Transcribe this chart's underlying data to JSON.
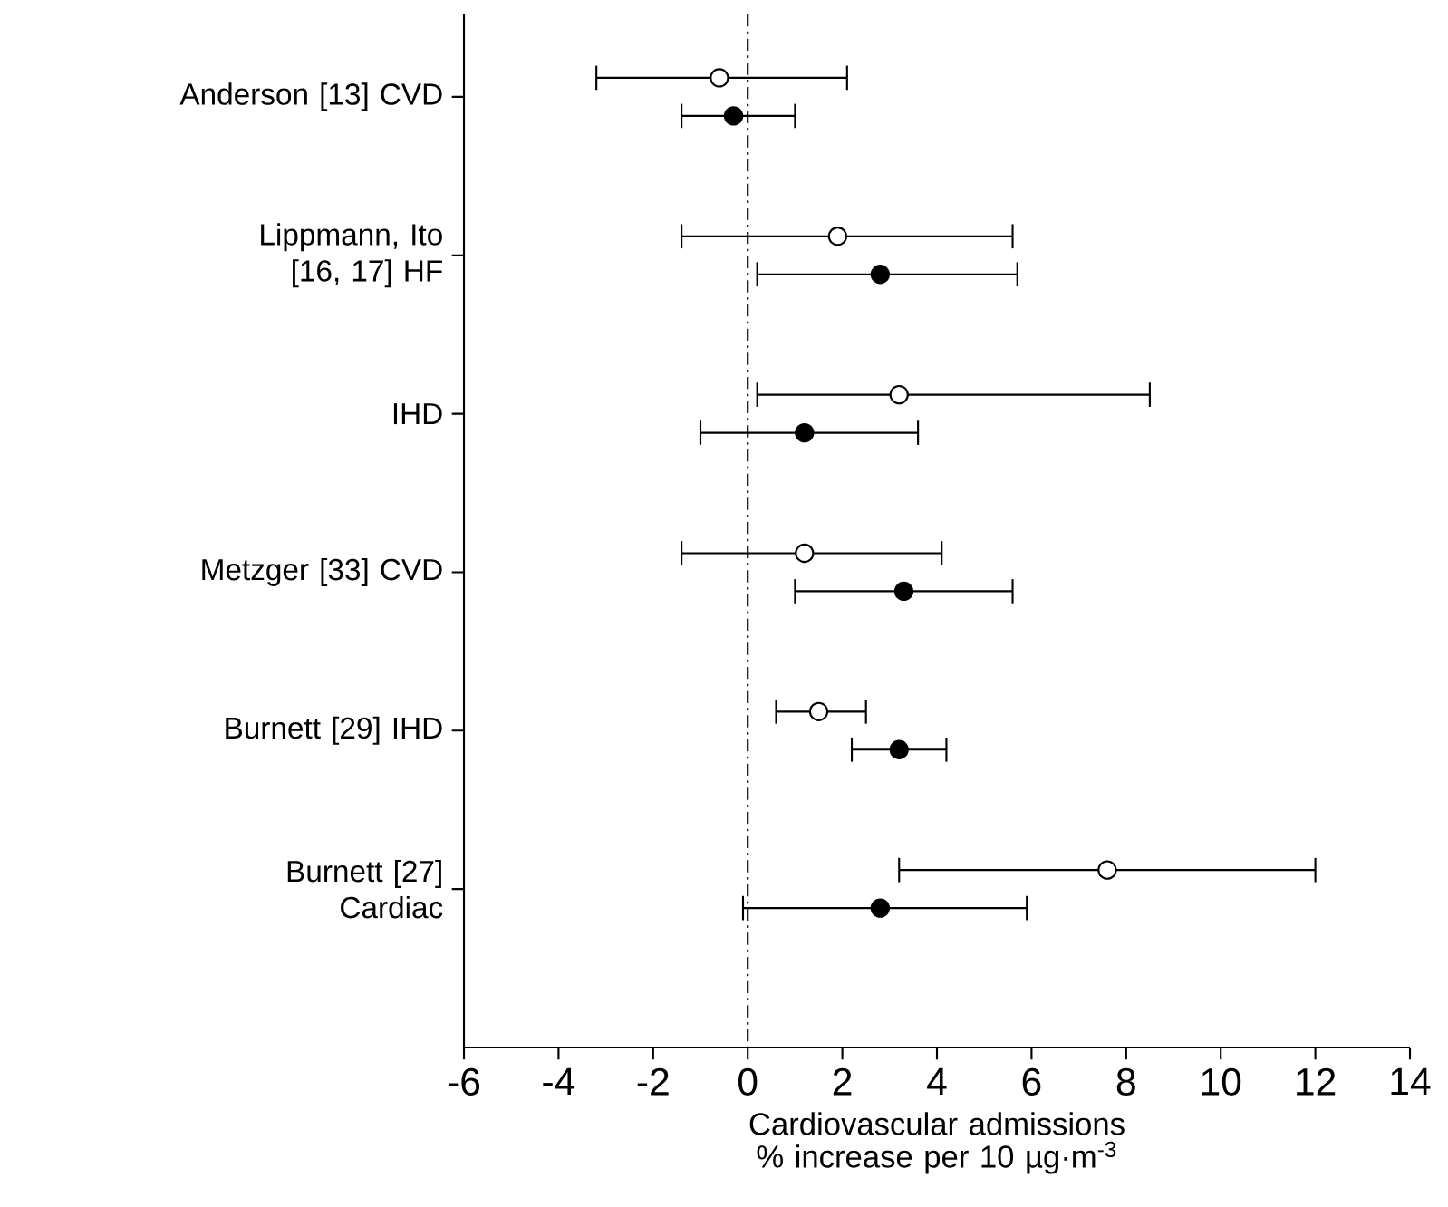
{
  "chart_data": {
    "type": "scatter",
    "orientation": "horizontal",
    "marker": "circle",
    "categories": [
      "Anderson [13] CVD",
      "Lippmann, Ito [16, 17] HF",
      "IHD",
      "Metzger [33] CVD",
      "Burnett [29] IHD",
      "Burnett [27] Cardiac"
    ],
    "xlabel": "Cardiovascular admissions % increase per 10 µg·m$^{-3}$",
    "xlim": [
      -6,
      14
    ],
    "xticks": [
      -6,
      -4,
      -2,
      0,
      2,
      4,
      6,
      8,
      10,
      12,
      14
    ],
    "ref_lines": [
      {
        "axis": "x",
        "value": 0
      }
    ],
    "series": [
      {
        "color": "#ffffff",
        "values": [
          -0.6,
          1.9,
          3.2,
          1.2,
          1.5,
          7.6
        ],
        "errors": [
          [
            -3.2,
            2.1
          ],
          [
            -1.4,
            5.6
          ],
          [
            0.2,
            8.5
          ],
          [
            -1.4,
            4.1
          ],
          [
            0.6,
            2.5
          ],
          [
            3.2,
            12.0
          ]
        ]
      },
      {
        "color": "#000000",
        "values": [
          -0.3,
          2.8,
          1.2,
          3.3,
          3.2,
          2.8
        ],
        "errors": [
          [
            -1.4,
            1.0
          ],
          [
            0.2,
            5.7
          ],
          [
            -1.0,
            3.6
          ],
          [
            1.0,
            5.6
          ],
          [
            2.2,
            4.2
          ],
          [
            -0.1,
            5.9
          ]
        ]
      }
    ]
  }
}
